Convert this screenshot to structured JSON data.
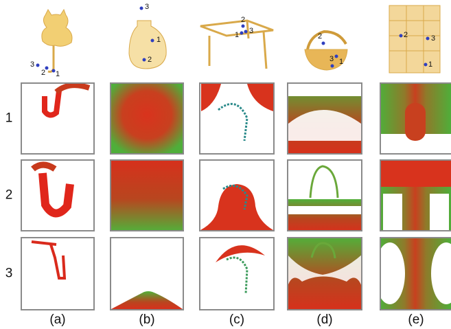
{
  "rows": [
    "1",
    "2",
    "3"
  ],
  "columns": [
    "(a)",
    "(b)",
    "(c)",
    "(d)",
    "(e)"
  ],
  "objects": [
    {
      "points": [
        "3",
        "2",
        "1"
      ]
    },
    {
      "points": [
        "3",
        "1",
        "2"
      ]
    },
    {
      "points": [
        "2",
        "1",
        "3"
      ]
    },
    {
      "points": [
        "2",
        "1",
        "3"
      ]
    },
    {
      "points": [
        "2",
        "3",
        "1"
      ]
    }
  ]
}
